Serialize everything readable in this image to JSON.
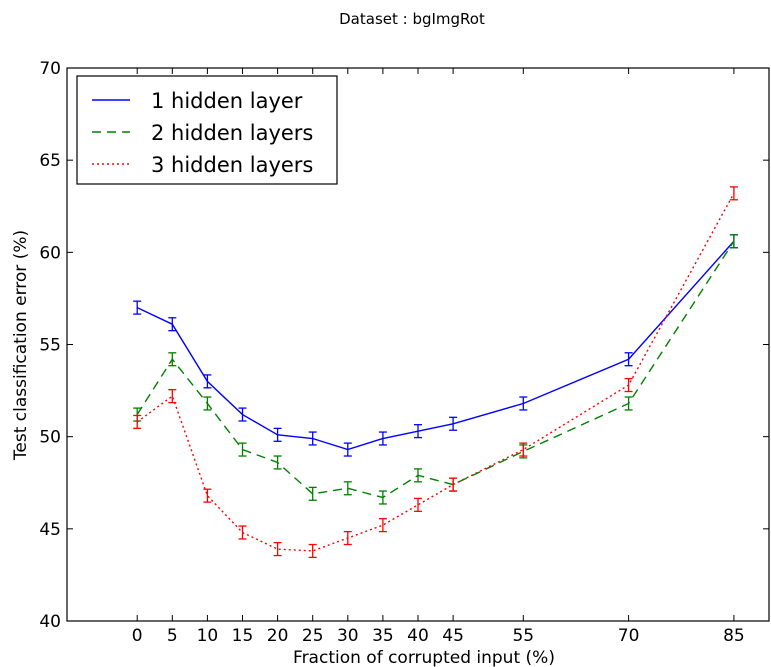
{
  "chart_data": {
    "type": "line",
    "title": "Dataset : bgImgRot",
    "xlabel": "Fraction of corrupted input (%)",
    "ylabel": "Test classification error (%)",
    "ylim": [
      40,
      70
    ],
    "yticks": [
      40,
      45,
      50,
      55,
      60,
      65,
      70
    ],
    "categories": [
      "0",
      "5",
      "10",
      "15",
      "20",
      "25",
      "30",
      "35",
      "40",
      "45",
      "55",
      "70",
      "85"
    ],
    "legend_position": "top-left",
    "grid": false,
    "series": [
      {
        "name": "1 hidden layer",
        "color": "#0000ff",
        "style": "solid",
        "values": [
          57.0,
          56.1,
          53.0,
          51.2,
          50.1,
          49.9,
          49.3,
          49.9,
          50.3,
          50.7,
          51.8,
          54.2,
          60.6
        ],
        "errors": [
          0.35,
          0.35,
          0.35,
          0.35,
          0.35,
          0.35,
          0.35,
          0.35,
          0.35,
          0.35,
          0.35,
          0.35,
          0.35
        ]
      },
      {
        "name": "2 hidden layers",
        "color": "#008000",
        "style": "dashed",
        "values": [
          51.2,
          54.2,
          51.8,
          49.3,
          48.6,
          46.9,
          47.2,
          46.7,
          47.9,
          47.4,
          49.2,
          51.8,
          60.6
        ],
        "errors": [
          0.35,
          0.35,
          0.35,
          0.35,
          0.35,
          0.35,
          0.35,
          0.35,
          0.35,
          0.35,
          0.35,
          0.35,
          0.35
        ]
      },
      {
        "name": "3 hidden layers",
        "color": "#ff0000",
        "style": "dotted",
        "values": [
          50.8,
          52.2,
          46.8,
          44.8,
          43.9,
          43.8,
          44.5,
          45.2,
          46.3,
          47.4,
          49.3,
          52.8,
          63.2
        ],
        "errors": [
          0.35,
          0.35,
          0.35,
          0.35,
          0.35,
          0.35,
          0.35,
          0.35,
          0.35,
          0.35,
          0.35,
          0.35,
          0.35
        ]
      }
    ]
  }
}
